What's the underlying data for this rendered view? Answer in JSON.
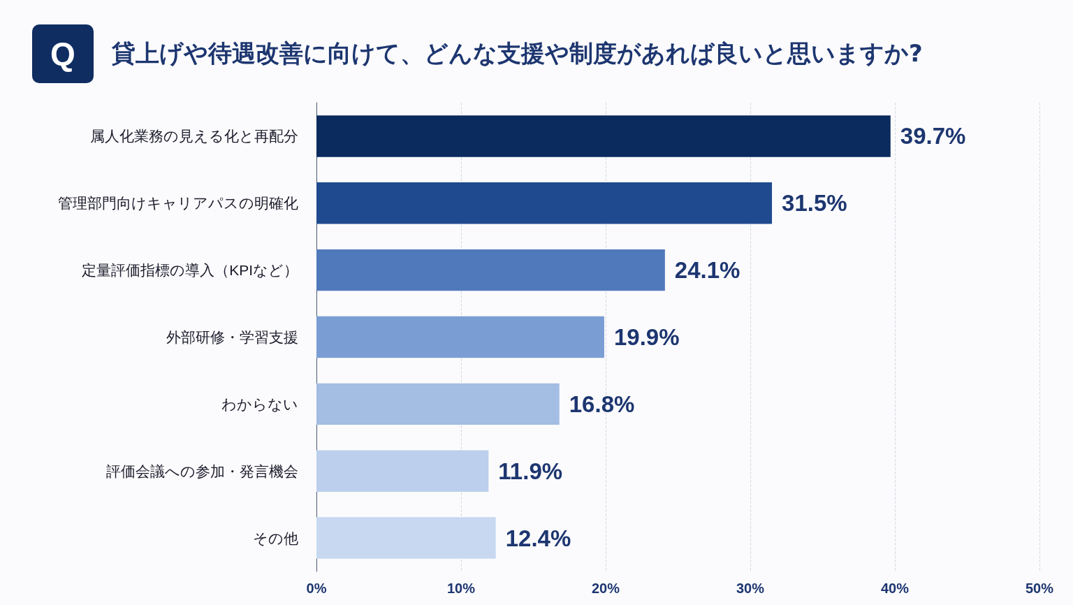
{
  "chart_data": {
    "type": "bar",
    "orientation": "horizontal",
    "title": "貸上げや待遇改善に向けて、どんな支援や制度があれば良いと思いますか?",
    "annotations": [
      "Q"
    ],
    "categories": [
      "属人化業務の見える化と再配分",
      "管理部門向けキャリアパスの明確化",
      "定量評価指標の導入（KPIなど）",
      "外部研修・学習支援",
      "わからない",
      "評価会議への参加・発言機会",
      "その他"
    ],
    "values": [
      39.7,
      31.5,
      24.1,
      19.9,
      16.8,
      11.9,
      12.4
    ],
    "value_labels": [
      "39.7%",
      "31.5%",
      "24.1%",
      "19.9%",
      "16.8%",
      "11.9%",
      "12.4%"
    ],
    "colors": [
      "#0b2a5e",
      "#1f4a8f",
      "#5079bb",
      "#7a9dd3",
      "#a3bde3",
      "#bccfec",
      "#c8d8f0"
    ],
    "xlim": [
      0,
      50
    ],
    "xticks": [
      {
        "value": 0,
        "label": "0%"
      },
      {
        "value": 10,
        "label": "10%"
      },
      {
        "value": 20,
        "label": "20%"
      },
      {
        "value": 30,
        "label": "30%"
      },
      {
        "value": 40,
        "label": "40%"
      },
      {
        "value": 50,
        "label": "50%"
      }
    ],
    "grid": "x"
  }
}
